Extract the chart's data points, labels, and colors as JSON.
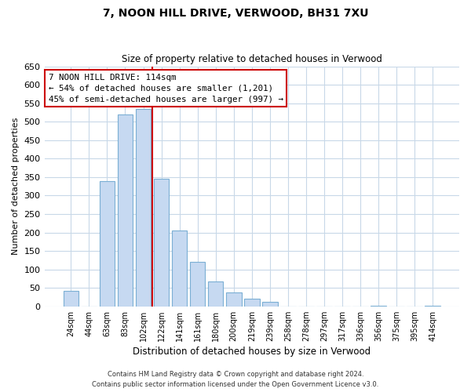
{
  "title": "7, NOON HILL DRIVE, VERWOOD, BH31 7XU",
  "subtitle": "Size of property relative to detached houses in Verwood",
  "xlabel": "Distribution of detached houses by size in Verwood",
  "ylabel": "Number of detached properties",
  "bar_labels": [
    "24sqm",
    "44sqm",
    "63sqm",
    "83sqm",
    "102sqm",
    "122sqm",
    "141sqm",
    "161sqm",
    "180sqm",
    "200sqm",
    "219sqm",
    "239sqm",
    "258sqm",
    "278sqm",
    "297sqm",
    "317sqm",
    "336sqm",
    "356sqm",
    "375sqm",
    "395sqm",
    "414sqm"
  ],
  "bar_heights": [
    42,
    0,
    340,
    520,
    535,
    345,
    205,
    120,
    67,
    38,
    20,
    13,
    0,
    0,
    0,
    0,
    0,
    2,
    0,
    0,
    2
  ],
  "bar_color": "#c6d9f1",
  "bar_edge_color": "#7bafd4",
  "vline_color": "#cc0000",
  "vline_x": 4.5,
  "annotation_title": "7 NOON HILL DRIVE: 114sqm",
  "annotation_line1": "← 54% of detached houses are smaller (1,201)",
  "annotation_line2": "45% of semi-detached houses are larger (997) →",
  "annotation_box_color": "#ffffff",
  "annotation_box_edge": "#cc0000",
  "ylim": [
    0,
    650
  ],
  "yticks": [
    0,
    50,
    100,
    150,
    200,
    250,
    300,
    350,
    400,
    450,
    500,
    550,
    600,
    650
  ],
  "footer_line1": "Contains HM Land Registry data © Crown copyright and database right 2024.",
  "footer_line2": "Contains public sector information licensed under the Open Government Licence v3.0.",
  "bg_color": "#ffffff",
  "grid_color": "#c8d8e8"
}
